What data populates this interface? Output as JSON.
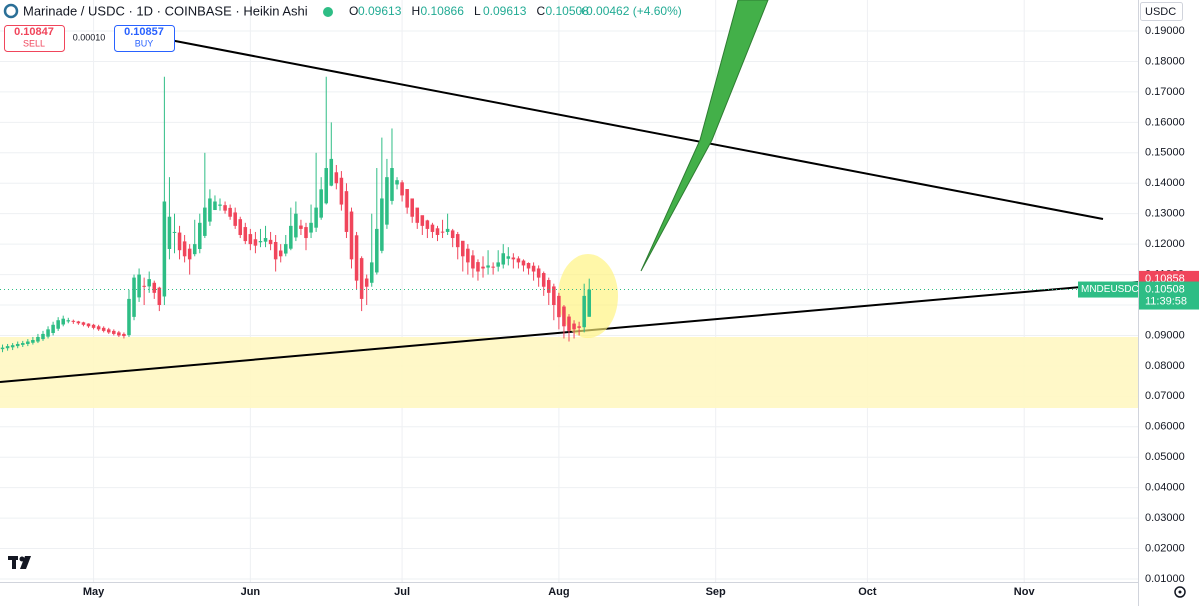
{
  "chart_data": {
    "type": "candlestick",
    "title": "Marinade / USDC · 1D · COINBASE · Heikin Ashi",
    "legend": [
      {
        "label": "O",
        "value": 0.09613
      },
      {
        "label": "H",
        "value": 0.10866
      },
      {
        "label": "L",
        "value": 0.09613
      },
      {
        "label": "C",
        "value": 0.10508
      }
    ],
    "change": "+0.00462 (+4.60%)",
    "sell": {
      "price": 0.10847,
      "label": "SELL"
    },
    "spread": "0.00010",
    "buy": {
      "price": 0.10857,
      "label": "BUY"
    },
    "currency": "USDC",
    "symbol": "MNDEUSDC",
    "last_price": 0.10508,
    "countdown": "11:39:58",
    "marker_price": 0.10858,
    "up_color": "#2ebd85",
    "down_color": "#f0455b",
    "grid": true,
    "ylim": [
      0.009,
      0.2002
    ],
    "yticks": [
      {
        "value": 0.01,
        "label": "0.01000"
      },
      {
        "value": 0.02,
        "label": "0.02000"
      },
      {
        "value": 0.03,
        "label": "0.03000"
      },
      {
        "value": 0.04,
        "label": "0.04000"
      },
      {
        "value": 0.05,
        "label": "0.05000"
      },
      {
        "value": 0.06,
        "label": "0.06000"
      },
      {
        "value": 0.07,
        "label": "0.07000"
      },
      {
        "value": 0.08,
        "label": "0.08000"
      },
      {
        "value": 0.09,
        "label": "0.09000"
      },
      {
        "value": 0.1,
        "label": "0.10000"
      },
      {
        "value": 0.11,
        "label": "0.11000"
      },
      {
        "value": 0.12,
        "label": "0.12000"
      },
      {
        "value": 0.13,
        "label": "0.13000"
      },
      {
        "value": 0.14,
        "label": "0.14000"
      },
      {
        "value": 0.15,
        "label": "0.15000"
      },
      {
        "value": 0.16,
        "label": "0.16000"
      },
      {
        "value": 0.17,
        "label": "0.17000"
      },
      {
        "value": 0.18,
        "label": "0.18000"
      },
      {
        "value": 0.19,
        "label": "0.19000"
      }
    ],
    "categories": [
      null,
      null,
      null,
      null,
      null,
      null,
      null,
      null,
      null,
      null,
      null,
      null,
      null,
      null,
      null,
      null,
      null,
      null,
      "May",
      null,
      null,
      null,
      null,
      null,
      null,
      null,
      null,
      null,
      null,
      null,
      null,
      null,
      null,
      null,
      null,
      null,
      null,
      null,
      null,
      null,
      null,
      null,
      null,
      null,
      null,
      null,
      null,
      null,
      null,
      "Jun",
      null,
      null,
      null,
      null,
      null,
      null,
      null,
      null,
      null,
      null,
      null,
      null,
      null,
      null,
      null,
      null,
      null,
      null,
      null,
      null,
      null,
      null,
      null,
      null,
      null,
      null,
      null,
      null,
      null,
      "Jul",
      null,
      null,
      null,
      null,
      null,
      null,
      null,
      null,
      null,
      null,
      null,
      null,
      null,
      null,
      null,
      null,
      null,
      null,
      null,
      null,
      null,
      null,
      null,
      null,
      null,
      null,
      null,
      null,
      null,
      null,
      "Aug",
      null,
      null,
      null,
      null,
      null,
      null,
      null,
      null,
      null,
      null,
      null,
      null,
      null,
      null,
      null,
      null,
      null,
      null,
      null,
      null,
      null,
      null,
      null,
      null,
      null,
      null,
      null,
      null,
      null,
      null,
      "Sep",
      null,
      null,
      null,
      null,
      null,
      null,
      null,
      null,
      null,
      null,
      null,
      null,
      null,
      null,
      null,
      null,
      null,
      null,
      null,
      null,
      null,
      null,
      null,
      null,
      null,
      null,
      null,
      null,
      null,
      "Oct",
      null,
      null,
      null,
      null,
      null,
      null,
      null,
      null,
      null,
      null,
      null,
      null,
      null,
      null,
      null,
      null,
      null,
      null,
      null,
      null,
      null,
      null,
      null,
      null,
      null,
      null,
      null,
      null,
      null,
      null,
      "Nov",
      null,
      null,
      null,
      null,
      null,
      null,
      null,
      null,
      null,
      null,
      null,
      null,
      null,
      null,
      null,
      null,
      null,
      null,
      null,
      null,
      null,
      null
    ],
    "open": [
      0.0855,
      0.0858,
      0.0861,
      0.0865,
      0.0869,
      0.0872,
      0.0876,
      0.088,
      0.0888,
      0.0896,
      0.0908,
      0.0922,
      0.0936,
      0.0946,
      0.0948,
      0.0946,
      0.0943,
      0.0939,
      0.0935,
      0.093,
      0.0925,
      0.092,
      0.0915,
      0.091,
      0.0905,
      0.0901,
      0.0961,
      0.1025,
      0.1063,
      0.1061,
      0.1073,
      0.1057,
      0.1028,
      0.1184,
      0.1237,
      0.1238,
      0.1209,
      0.1185,
      0.1167,
      0.1184,
      0.1227,
      0.1274,
      0.1312,
      0.1326,
      0.1328,
      0.1319,
      0.1304,
      0.1282,
      0.1256,
      0.1233,
      0.1216,
      0.1206,
      0.1208,
      0.1214,
      0.1207,
      0.1179,
      0.1169,
      0.1185,
      0.1222,
      0.1261,
      0.1256,
      0.1238,
      0.1254,
      0.1287,
      0.1334,
      0.1392,
      0.1436,
      0.1418,
      0.1374,
      0.1307,
      0.1229,
      0.1154,
      0.1087,
      0.1073,
      0.1107,
      0.1178,
      0.1264,
      0.1342,
      0.1396,
      0.1403,
      0.1381,
      0.135,
      0.132,
      0.1295,
      0.1278,
      0.1264,
      0.1252,
      0.1241,
      0.124,
      0.1245,
      0.1233,
      0.1211,
      0.1185,
      0.1163,
      0.1141,
      0.1126,
      0.1123,
      0.1126,
      0.1126,
      0.1133,
      0.1152,
      0.1156,
      0.1153,
      0.1146,
      0.1138,
      0.1129,
      0.112,
      0.1105,
      0.1082,
      0.1061,
      0.103,
      0.0995,
      0.0962,
      0.0939,
      0.093,
      0.0927,
      0.09613,
      null,
      null,
      null,
      null,
      null,
      null,
      null,
      null,
      null,
      null,
      null,
      null,
      null,
      null,
      null,
      null,
      null,
      null,
      null,
      null,
      null,
      null,
      null,
      null,
      null,
      null,
      null,
      null,
      null,
      null,
      null,
      null,
      null,
      null,
      null,
      null,
      null,
      null,
      null,
      null,
      null,
      null,
      null,
      null,
      null,
      null,
      null,
      null,
      null,
      null,
      null,
      null,
      null,
      null,
      null,
      null,
      null,
      null,
      null,
      null,
      null,
      null,
      null,
      null,
      null,
      null,
      null,
      null,
      null,
      null,
      null,
      null,
      null,
      null,
      null,
      null,
      null,
      null,
      null,
      null,
      null,
      null,
      null,
      null,
      null,
      null,
      null,
      null,
      null,
      null,
      null,
      null,
      null,
      null,
      null,
      null,
      null,
      null,
      null,
      null,
      null,
      null,
      null,
      null,
      null,
      null,
      null,
      null
    ],
    "high": [
      0.087,
      0.0872,
      0.0875,
      0.088,
      0.0882,
      0.0888,
      0.0895,
      0.0905,
      0.0915,
      0.093,
      0.0945,
      0.096,
      0.0965,
      0.0958,
      0.0952,
      0.0948,
      0.0945,
      0.094,
      0.0938,
      0.0935,
      0.093,
      0.0925,
      0.092,
      0.0915,
      0.091,
      0.105,
      0.11,
      0.112,
      0.109,
      0.111,
      0.108,
      0.106,
      0.175,
      0.142,
      0.13,
      0.126,
      0.123,
      0.12,
      0.128,
      0.13,
      0.15,
      0.138,
      0.136,
      0.135,
      0.134,
      0.133,
      0.132,
      0.129,
      0.127,
      0.125,
      0.124,
      0.125,
      0.126,
      0.124,
      0.123,
      0.12,
      0.123,
      0.132,
      0.134,
      0.128,
      0.127,
      0.133,
      0.15,
      0.142,
      0.175,
      0.16,
      0.146,
      0.144,
      0.14,
      0.132,
      0.124,
      0.116,
      0.11,
      0.13,
      0.145,
      0.155,
      0.148,
      0.158,
      0.142,
      0.141,
      0.137,
      0.134,
      0.131,
      0.129,
      0.128,
      0.127,
      0.126,
      0.128,
      0.13,
      0.125,
      0.124,
      0.12,
      0.12,
      0.118,
      0.115,
      0.116,
      0.118,
      0.114,
      0.118,
      0.12,
      0.119,
      0.117,
      0.116,
      0.115,
      0.114,
      0.114,
      0.113,
      0.111,
      0.109,
      0.107,
      0.104,
      0.1,
      0.097,
      0.095,
      0.0945,
      0.107,
      0.10866,
      null,
      null,
      null,
      null,
      null,
      null,
      null,
      null,
      null,
      null,
      null,
      null,
      null,
      null,
      null,
      null,
      null,
      null,
      null,
      null,
      null,
      null,
      null,
      null,
      null,
      null,
      null,
      null,
      null,
      null,
      null,
      null,
      null,
      null,
      null,
      null,
      null,
      null,
      null,
      null,
      null,
      null,
      null,
      null,
      null,
      null,
      null,
      null,
      null,
      null,
      null,
      null,
      null,
      null,
      null,
      null,
      null,
      null,
      null,
      null,
      null,
      null,
      null,
      null,
      null,
      null,
      null,
      null,
      null,
      null,
      null,
      null,
      null,
      null,
      null,
      null,
      null,
      null,
      null,
      null,
      null,
      null,
      null,
      null,
      null,
      null,
      null,
      null,
      null,
      null,
      null,
      null,
      null,
      null,
      null,
      null,
      null,
      null,
      null,
      null,
      null,
      null,
      null,
      null,
      null,
      null,
      null,
      null
    ],
    "low": [
      0.0845,
      0.085,
      0.0852,
      0.0858,
      0.0862,
      0.0865,
      0.087,
      0.0875,
      0.0882,
      0.089,
      0.09,
      0.0915,
      0.093,
      0.094,
      0.0938,
      0.0935,
      0.093,
      0.0925,
      0.092,
      0.0915,
      0.091,
      0.0905,
      0.09,
      0.0895,
      0.089,
      0.0895,
      0.095,
      0.101,
      0.1,
      0.104,
      0.102,
      0.098,
      0.1,
      0.115,
      0.117,
      0.115,
      0.114,
      0.11,
      0.116,
      0.117,
      0.122,
      0.126,
      0.132,
      0.131,
      0.13,
      0.128,
      0.125,
      0.122,
      0.12,
      0.118,
      0.117,
      0.119,
      0.119,
      0.118,
      0.111,
      0.114,
      0.116,
      0.118,
      0.121,
      0.123,
      0.118,
      0.122,
      0.124,
      0.128,
      0.133,
      0.139,
      0.138,
      0.131,
      0.122,
      0.112,
      0.105,
      0.098,
      0.1,
      0.106,
      0.11,
      0.117,
      0.125,
      0.133,
      0.138,
      0.134,
      0.13,
      0.127,
      0.125,
      0.123,
      0.122,
      0.122,
      0.121,
      0.122,
      0.123,
      0.119,
      0.115,
      0.111,
      0.11,
      0.109,
      0.108,
      0.109,
      0.11,
      0.11,
      0.111,
      0.112,
      0.113,
      0.112,
      0.112,
      0.111,
      0.11,
      0.108,
      0.106,
      0.103,
      0.1,
      0.095,
      0.092,
      0.089,
      0.088,
      0.089,
      0.09,
      0.091,
      0.09613,
      null,
      null,
      null,
      null,
      null,
      null,
      null,
      null,
      null,
      null,
      null,
      null,
      null,
      null,
      null,
      null,
      null,
      null,
      null,
      null,
      null,
      null,
      null,
      null,
      null,
      null,
      null,
      null,
      null,
      null,
      null,
      null,
      null,
      null,
      null,
      null,
      null,
      null,
      null,
      null,
      null,
      null,
      null,
      null,
      null,
      null,
      null,
      null,
      null,
      null,
      null,
      null,
      null,
      null,
      null,
      null,
      null,
      null,
      null,
      null,
      null,
      null,
      null,
      null,
      null,
      null,
      null,
      null,
      null,
      null,
      null,
      null,
      null,
      null,
      null,
      null,
      null,
      null,
      null,
      null,
      null,
      null,
      null,
      null,
      null,
      null,
      null,
      null,
      null,
      null,
      null,
      null,
      null,
      null,
      null,
      null,
      null,
      null,
      null,
      null,
      null,
      null,
      null,
      null,
      null,
      null,
      null,
      null
    ],
    "close": [
      0.086,
      0.0865,
      0.0868,
      0.0872,
      0.0875,
      0.088,
      0.0885,
      0.0895,
      0.0905,
      0.092,
      0.0935,
      0.095,
      0.0955,
      0.095,
      0.0945,
      0.094,
      0.0935,
      0.093,
      0.0925,
      0.092,
      0.0915,
      0.091,
      0.0905,
      0.09,
      0.0898,
      0.102,
      0.109,
      0.11,
      0.106,
      0.1085,
      0.104,
      0.1,
      0.134,
      0.129,
      0.124,
      0.118,
      0.116,
      0.115,
      0.12,
      0.127,
      0.132,
      0.135,
      0.134,
      0.133,
      0.131,
      0.129,
      0.126,
      0.123,
      0.121,
      0.12,
      0.1195,
      0.121,
      0.122,
      0.12,
      0.115,
      0.116,
      0.12,
      0.126,
      0.13,
      0.125,
      0.122,
      0.127,
      0.132,
      0.138,
      0.145,
      0.148,
      0.14,
      0.133,
      0.124,
      0.115,
      0.108,
      0.102,
      0.106,
      0.114,
      0.125,
      0.135,
      0.142,
      0.145,
      0.141,
      0.136,
      0.132,
      0.129,
      0.127,
      0.126,
      0.125,
      0.124,
      0.123,
      0.124,
      0.125,
      0.122,
      0.119,
      0.116,
      0.114,
      0.112,
      0.111,
      0.112,
      0.113,
      0.1125,
      0.114,
      0.117,
      0.116,
      0.115,
      0.114,
      0.113,
      0.112,
      0.111,
      0.109,
      0.106,
      0.104,
      0.1,
      0.096,
      0.093,
      0.0915,
      0.092,
      0.0925,
      0.103,
      0.10508,
      null,
      null,
      null,
      null,
      null,
      null,
      null,
      null,
      null,
      null,
      null,
      null,
      null,
      null,
      null,
      null,
      null,
      null,
      null,
      null,
      null,
      null,
      null,
      null,
      null,
      null,
      null,
      null,
      null,
      null,
      null,
      null,
      null,
      null,
      null,
      null,
      null,
      null,
      null,
      null,
      null,
      null,
      null,
      null,
      null,
      null,
      null,
      null,
      null,
      null,
      null,
      null,
      null,
      null,
      null,
      null,
      null,
      null,
      null,
      null,
      null,
      null,
      null,
      null,
      null,
      null,
      null,
      null,
      null,
      null,
      null,
      null,
      null,
      null,
      null,
      null,
      null,
      null,
      null,
      null,
      null,
      null,
      null,
      null,
      null,
      null,
      null,
      null,
      null,
      null,
      null,
      null,
      null,
      null,
      null,
      null,
      null,
      null,
      null,
      null,
      null,
      null,
      null,
      null,
      null,
      null,
      null,
      null
    ]
  }
}
